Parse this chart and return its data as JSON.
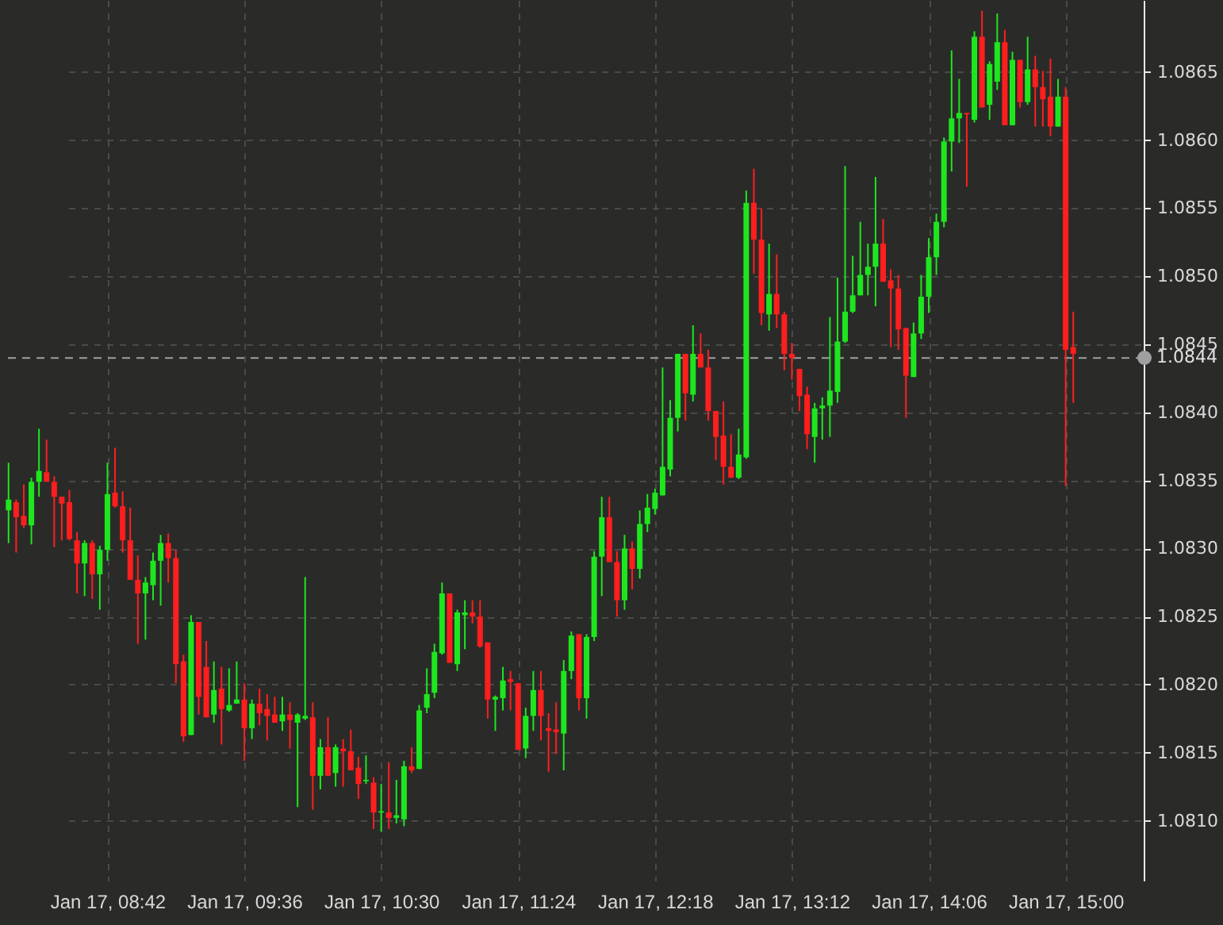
{
  "chart_data": {
    "type": "candlestick",
    "categories": [
      null,
      null,
      null,
      null,
      null,
      null,
      null,
      null,
      null,
      null,
      null,
      null,
      null,
      "Jan 17, 08:42",
      null,
      null,
      null,
      null,
      null,
      null,
      null,
      null,
      null,
      null,
      null,
      null,
      null,
      null,
      null,
      null,
      null,
      "Jan 17, 09:36",
      null,
      null,
      null,
      null,
      null,
      null,
      null,
      null,
      null,
      null,
      null,
      null,
      null,
      null,
      null,
      null,
      null,
      "Jan 17, 10:30",
      null,
      null,
      null,
      null,
      null,
      null,
      null,
      null,
      null,
      null,
      null,
      null,
      null,
      null,
      null,
      null,
      null,
      "Jan 17, 11:24",
      null,
      null,
      null,
      null,
      null,
      null,
      null,
      null,
      null,
      null,
      null,
      null,
      null,
      null,
      null,
      null,
      null,
      "Jan 17, 12:18",
      null,
      null,
      null,
      null,
      null,
      null,
      null,
      null,
      null,
      null,
      null,
      null,
      null,
      null,
      null,
      null,
      null,
      "Jan 17, 13:12",
      null,
      null,
      null,
      null,
      null,
      null,
      null,
      null,
      null,
      null,
      null,
      null,
      null,
      null,
      null,
      null,
      null,
      "Jan 17, 14:06",
      null,
      null,
      null,
      null,
      null,
      null,
      null,
      null,
      null,
      null,
      null,
      null,
      null,
      null,
      null,
      null,
      null,
      "Jan 17, 15:00",
      null
    ],
    "ohlc": [
      [
        1.08328,
        1.08363,
        1.08304,
        1.08336
      ],
      [
        1.08334,
        1.08336,
        1.08297,
        1.08323
      ],
      [
        1.08324,
        1.08347,
        1.08315,
        1.08317
      ],
      [
        1.08317,
        1.08352,
        1.08303,
        1.08349
      ],
      [
        1.08349,
        1.08388,
        1.08338,
        1.08357
      ],
      [
        1.08356,
        1.0838,
        1.08349,
        1.08349
      ],
      [
        1.08349,
        1.08353,
        1.08301,
        1.08338
      ],
      [
        1.08338,
        1.08338,
        1.08306,
        1.08333
      ],
      [
        1.08334,
        1.08343,
        1.08306,
        1.08307
      ],
      [
        1.08306,
        1.08312,
        1.08267,
        1.08289
      ],
      [
        1.08289,
        1.08306,
        1.08265,
        1.08304
      ],
      [
        1.08304,
        1.08306,
        1.08263,
        1.08281
      ],
      [
        1.08281,
        1.08302,
        1.08255,
        1.08299
      ],
      [
        1.08299,
        1.08363,
        1.08291,
        1.0834
      ],
      [
        1.08341,
        1.08374,
        1.0833,
        1.08331
      ],
      [
        1.08331,
        1.08342,
        1.08297,
        1.08306
      ],
      [
        1.08306,
        1.0833,
        1.08277,
        1.08277
      ],
      [
        1.08277,
        1.08295,
        1.0823,
        1.08267
      ],
      [
        1.08267,
        1.08279,
        1.08233,
        1.08275
      ],
      [
        1.08273,
        1.08297,
        1.08262,
        1.08291
      ],
      [
        1.08291,
        1.0831,
        1.08258,
        1.08304
      ],
      [
        1.08304,
        1.08311,
        1.08275,
        1.08293
      ],
      [
        1.08293,
        1.08299,
        1.08201,
        1.08215
      ],
      [
        1.08217,
        1.08222,
        1.08158,
        1.08162
      ],
      [
        1.08163,
        1.08251,
        1.08163,
        1.08246
      ],
      [
        1.08246,
        1.08246,
        1.08178,
        1.08191
      ],
      [
        1.08213,
        1.08232,
        1.08176,
        1.08176
      ],
      [
        1.08178,
        1.08217,
        1.08172,
        1.08196
      ],
      [
        1.08197,
        1.08213,
        1.08156,
        1.08182
      ],
      [
        1.08181,
        1.08212,
        1.0818,
        1.08185
      ],
      [
        1.08186,
        1.08217,
        1.08186,
        1.08189
      ],
      [
        1.08189,
        1.08201,
        1.08144,
        1.08168
      ],
      [
        1.08168,
        1.08189,
        1.0816,
        1.08186
      ],
      [
        1.08186,
        1.08197,
        1.0817,
        1.08179
      ],
      [
        1.08182,
        1.08193,
        1.08159,
        1.08177
      ],
      [
        1.08178,
        1.08191,
        1.08172,
        1.08172
      ],
      [
        1.08173,
        1.08191,
        1.08166,
        1.08178
      ],
      [
        1.08178,
        1.08187,
        1.08153,
        1.08174
      ],
      [
        1.08172,
        1.08179,
        1.0811,
        1.08178
      ],
      [
        1.08175,
        1.08279,
        1.08174,
        1.08177
      ],
      [
        1.08176,
        1.08187,
        1.08108,
        1.08133
      ],
      [
        1.08133,
        1.0816,
        1.08123,
        1.08154
      ],
      [
        1.08154,
        1.08176,
        1.08133,
        1.08133
      ],
      [
        1.08135,
        1.08156,
        1.08125,
        1.08154
      ],
      [
        1.08153,
        1.0816,
        1.08125,
        1.08151
      ],
      [
        1.08151,
        1.08167,
        1.08137,
        1.08137
      ],
      [
        1.08139,
        1.08147,
        1.08116,
        1.08127
      ],
      [
        1.08129,
        1.08148,
        1.08127,
        1.0813
      ],
      [
        1.08128,
        1.08132,
        1.08094,
        1.08106
      ],
      [
        1.08106,
        1.08127,
        1.08092,
        1.08107
      ],
      [
        1.08106,
        1.08143,
        1.08094,
        1.08102
      ],
      [
        1.08102,
        1.0813,
        1.08098,
        1.08104
      ],
      [
        1.08101,
        1.08144,
        1.08096,
        1.0814
      ],
      [
        1.0814,
        1.08154,
        1.08135,
        1.08137
      ],
      [
        1.08138,
        1.08185,
        1.08138,
        1.08181
      ],
      [
        1.08183,
        1.08212,
        1.08179,
        1.08193
      ],
      [
        1.08194,
        1.0823,
        1.0819,
        1.08224
      ],
      [
        1.08223,
        1.08275,
        1.08222,
        1.08267
      ],
      [
        1.08267,
        1.08267,
        1.08216,
        1.08216
      ],
      [
        1.08215,
        1.08255,
        1.0821,
        1.08253
      ],
      [
        1.08251,
        1.08262,
        1.08226,
        1.08253
      ],
      [
        1.08253,
        1.08262,
        1.08245,
        1.0825
      ],
      [
        1.0825,
        1.08262,
        1.08227,
        1.08228
      ],
      [
        1.08231,
        1.08231,
        1.08175,
        1.08189
      ],
      [
        1.08189,
        1.08192,
        1.08166,
        1.08191
      ],
      [
        1.0819,
        1.08213,
        1.08181,
        1.08203
      ],
      [
        1.08204,
        1.0821,
        1.08181,
        1.08202
      ],
      [
        1.08201,
        1.08201,
        1.08152,
        1.08152
      ],
      [
        1.08153,
        1.08183,
        1.08146,
        1.08177
      ],
      [
        1.08177,
        1.0821,
        1.08166,
        1.08196
      ],
      [
        1.08196,
        1.0821,
        1.08159,
        1.08177
      ],
      [
        1.08168,
        1.08179,
        1.08136,
        1.08166
      ],
      [
        1.08167,
        1.08187,
        1.08149,
        1.08165
      ],
      [
        1.08164,
        1.08218,
        1.08137,
        1.0821
      ],
      [
        1.0821,
        1.08239,
        1.08204,
        1.08236
      ],
      [
        1.08237,
        1.08237,
        1.08181,
        1.0819
      ],
      [
        1.0819,
        1.08237,
        1.08175,
        1.08235
      ],
      [
        1.08235,
        1.08298,
        1.08232,
        1.08294
      ],
      [
        1.08294,
        1.08338,
        1.08265,
        1.08323
      ],
      [
        1.08323,
        1.08338,
        1.0829,
        1.0829
      ],
      [
        1.0829,
        1.08298,
        1.0825,
        1.08262
      ],
      [
        1.08262,
        1.0831,
        1.08255,
        1.083
      ],
      [
        1.083,
        1.08305,
        1.0827,
        1.08285
      ],
      [
        1.08285,
        1.08328,
        1.08278,
        1.08318
      ],
      [
        1.08318,
        1.0834,
        1.08312,
        1.0833
      ],
      [
        1.08329,
        1.08344,
        1.08325,
        1.08341
      ],
      [
        1.08339,
        1.08433,
        1.08339,
        1.0836
      ],
      [
        1.08358,
        1.08409,
        1.08353,
        1.08396
      ],
      [
        1.08396,
        1.08443,
        1.08386,
        1.08443
      ],
      [
        1.08443,
        1.08443,
        1.08394,
        1.08414
      ],
      [
        1.08413,
        1.08464,
        1.08408,
        1.08443
      ],
      [
        1.08443,
        1.08458,
        1.08433,
        1.08433
      ],
      [
        1.08433,
        1.08446,
        1.08394,
        1.08401
      ],
      [
        1.08401,
        1.08401,
        1.08365,
        1.08382
      ],
      [
        1.08383,
        1.08408,
        1.08347,
        1.0836
      ],
      [
        1.0836,
        1.08384,
        1.08352,
        1.08352
      ],
      [
        1.08352,
        1.08388,
        1.08351,
        1.08369
      ],
      [
        1.08367,
        1.08563,
        1.08366,
        1.08554
      ],
      [
        1.08554,
        1.08579,
        1.08502,
        1.08527
      ],
      [
        1.08527,
        1.0855,
        1.08464,
        1.08473
      ],
      [
        1.08472,
        1.08524,
        1.0846,
        1.08487
      ],
      [
        1.08487,
        1.08516,
        1.08462,
        1.08472
      ],
      [
        1.08472,
        1.08474,
        1.08431,
        1.08443
      ],
      [
        1.08443,
        1.08451,
        1.08424,
        1.0844
      ],
      [
        1.08432,
        1.08432,
        1.08401,
        1.08412
      ],
      [
        1.08413,
        1.08419,
        1.08373,
        1.08384
      ],
      [
        1.08382,
        1.08407,
        1.08363,
        1.08403
      ],
      [
        1.08403,
        1.08411,
        1.0838,
        1.08405
      ],
      [
        1.08405,
        1.0847,
        1.08382,
        1.08416
      ],
      [
        1.08415,
        1.08499,
        1.08407,
        1.08452
      ],
      [
        1.08452,
        1.08581,
        1.08451,
        1.08474
      ],
      [
        1.08474,
        1.08515,
        1.08473,
        1.08486
      ],
      [
        1.08486,
        1.0854,
        1.08486,
        1.08501
      ],
      [
        1.08501,
        1.08524,
        1.08486,
        1.08507
      ],
      [
        1.08507,
        1.08573,
        1.08478,
        1.08524
      ],
      [
        1.08524,
        1.08542,
        1.08496,
        1.08496
      ],
      [
        1.08497,
        1.08505,
        1.08448,
        1.08491
      ],
      [
        1.08491,
        1.08501,
        1.08446,
        1.08461
      ],
      [
        1.08462,
        1.08462,
        1.08396,
        1.08427
      ],
      [
        1.08426,
        1.08466,
        1.08426,
        1.08458
      ],
      [
        1.08458,
        1.08501,
        1.08454,
        1.08485
      ],
      [
        1.08485,
        1.08528,
        1.08473,
        1.08514
      ],
      [
        1.08514,
        1.08546,
        1.08501,
        1.0854
      ],
      [
        1.0854,
        1.08602,
        1.08536,
        1.08599
      ],
      [
        1.08599,
        1.08666,
        1.08577,
        1.08616
      ],
      [
        1.08616,
        1.08645,
        1.08598,
        1.0862
      ],
      [
        1.0862,
        1.0862,
        1.08566,
        1.08619
      ],
      [
        1.08615,
        1.0868,
        1.08613,
        1.08676
      ],
      [
        1.08676,
        1.08695,
        1.08624,
        1.08624
      ],
      [
        1.08626,
        1.08658,
        1.08615,
        1.08656
      ],
      [
        1.08643,
        1.08693,
        1.08637,
        1.08672
      ],
      [
        1.08672,
        1.08681,
        1.08611,
        1.08611
      ],
      [
        1.08611,
        1.08665,
        1.08611,
        1.08659
      ],
      [
        1.08659,
        1.08659,
        1.08624,
        1.08628
      ],
      [
        1.08628,
        1.08676,
        1.08626,
        1.08652
      ],
      [
        1.08652,
        1.08662,
        1.0861,
        1.08639
      ],
      [
        1.08639,
        1.08651,
        1.0861,
        1.0863
      ],
      [
        1.08632,
        1.0866,
        1.08603,
        1.0861
      ],
      [
        1.0861,
        1.08645,
        1.0861,
        1.08632
      ],
      [
        1.08632,
        1.08639,
        1.08346,
        1.08446
      ],
      [
        1.08448,
        1.08474,
        1.08407,
        1.08443
      ]
    ],
    "colors": [
      "#1ee61e",
      "#ff1e1e",
      "#ff1e1e",
      "#1ee61e",
      "#1ee61e",
      "#ff1e1e",
      "#ff1e1e",
      "#ff1e1e",
      "#ff1e1e",
      "#ff1e1e",
      "#1ee61e",
      "#ff1e1e",
      "#1ee61e",
      "#1ee61e",
      "#ff1e1e",
      "#ff1e1e",
      "#ff1e1e",
      "#ff1e1e",
      "#1ee61e",
      "#1ee61e",
      "#1ee61e",
      "#ff1e1e",
      "#ff1e1e",
      "#ff1e1e",
      "#1ee61e",
      "#ff1e1e",
      "#ff1e1e",
      "#1ee61e",
      "#ff1e1e",
      "#1ee61e",
      "#1ee61e",
      "#ff1e1e",
      "#1ee61e",
      "#ff1e1e",
      "#ff1e1e",
      "#ff1e1e",
      "#1ee61e",
      "#ff1e1e",
      "#1ee61e",
      "#1ee61e",
      "#ff1e1e",
      "#1ee61e",
      "#ff1e1e",
      "#1ee61e",
      "#ff1e1e",
      "#ff1e1e",
      "#ff1e1e",
      "#1ee61e",
      "#ff1e1e",
      "#1ee61e",
      "#ff1e1e",
      "#1ee61e",
      "#1ee61e",
      "#ff1e1e",
      "#1ee61e",
      "#1ee61e",
      "#1ee61e",
      "#1ee61e",
      "#ff1e1e",
      "#1ee61e",
      "#1ee61e",
      "#ff1e1e",
      "#ff1e1e",
      "#ff1e1e",
      "#1ee61e",
      "#1ee61e",
      "#ff1e1e",
      "#ff1e1e",
      "#1ee61e",
      "#1ee61e",
      "#ff1e1e",
      "#ff1e1e",
      "#ff1e1e",
      "#1ee61e",
      "#1ee61e",
      "#ff1e1e",
      "#1ee61e",
      "#1ee61e",
      "#1ee61e",
      "#ff1e1e",
      "#ff1e1e",
      "#1ee61e",
      "#ff1e1e",
      "#1ee61e",
      "#1ee61e",
      "#1ee61e",
      "#1ee61e",
      "#1ee61e",
      "#1ee61e",
      "#ff1e1e",
      "#1ee61e",
      "#ff1e1e",
      "#ff1e1e",
      "#ff1e1e",
      "#ff1e1e",
      "#ff1e1e",
      "#1ee61e",
      "#1ee61e",
      "#ff1e1e",
      "#ff1e1e",
      "#1ee61e",
      "#ff1e1e",
      "#ff1e1e",
      "#ff1e1e",
      "#ff1e1e",
      "#ff1e1e",
      "#1ee61e",
      "#1ee61e",
      "#1ee61e",
      "#1ee61e",
      "#1ee61e",
      "#1ee61e",
      "#1ee61e",
      "#1ee61e",
      "#1ee61e",
      "#ff1e1e",
      "#ff1e1e",
      "#ff1e1e",
      "#ff1e1e",
      "#1ee61e",
      "#1ee61e",
      "#1ee61e",
      "#1ee61e",
      "#1ee61e",
      "#1ee61e",
      "#1ee61e",
      "#ff1e1e",
      "#1ee61e",
      "#ff1e1e",
      "#1ee61e",
      "#1ee61e",
      "#ff1e1e",
      "#1ee61e",
      "#ff1e1e",
      "#1ee61e",
      "#ff1e1e",
      "#ff1e1e",
      "#ff1e1e",
      "#1ee61e",
      "#ff1e1e",
      "#ff1e1e"
    ],
    "ylim": [
      1.08056,
      1.08703
    ],
    "yticks": [
      {
        "value": 1.081,
        "label": "1.0810"
      },
      1.0815,
      {
        "value": 1.082,
        "label": "1.0820"
      },
      1.0825,
      {
        "value": 1.083,
        "label": "1.0830"
      },
      1.0835,
      {
        "value": 1.084,
        "label": "1.0840"
      },
      1.0845,
      {
        "value": 1.085,
        "label": "1.0850"
      },
      1.0855,
      {
        "value": 1.086,
        "label": "1.0860"
      },
      1.0865
    ],
    "ref_lines": [
      {
        "axis": "y",
        "value": 1.0844,
        "label": "1.0844",
        "color": "#a0a0a0",
        "line_style": "dashed"
      }
    ],
    "grid": true
  }
}
